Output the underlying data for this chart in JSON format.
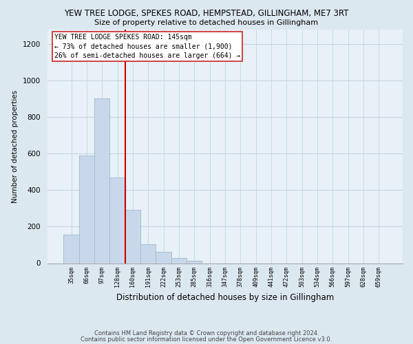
{
  "title": "YEW TREE LODGE, SPEKES ROAD, HEMPSTEAD, GILLINGHAM, ME7 3RT",
  "subtitle": "Size of property relative to detached houses in Gillingham",
  "xlabel": "Distribution of detached houses by size in Gillingham",
  "ylabel": "Number of detached properties",
  "bar_color": "#c8d8ea",
  "bar_edge_color": "#a0b8cc",
  "categories": [
    "35sqm",
    "66sqm",
    "97sqm",
    "128sqm",
    "160sqm",
    "191sqm",
    "222sqm",
    "253sqm",
    "285sqm",
    "316sqm",
    "347sqm",
    "378sqm",
    "409sqm",
    "441sqm",
    "472sqm",
    "503sqm",
    "534sqm",
    "566sqm",
    "597sqm",
    "628sqm",
    "659sqm"
  ],
  "values": [
    155,
    590,
    900,
    470,
    290,
    105,
    62,
    28,
    12,
    0,
    0,
    0,
    0,
    0,
    0,
    0,
    0,
    0,
    0,
    0,
    0
  ],
  "ylim": [
    0,
    1280
  ],
  "yticks": [
    0,
    200,
    400,
    600,
    800,
    1000,
    1200
  ],
  "vline_color": "#cc0000",
  "annotation_line1": "YEW TREE LODGE SPEKES ROAD: 145sqm",
  "annotation_line2": "← 73% of detached houses are smaller (1,900)",
  "annotation_line3": "26% of semi-detached houses are larger (664) →",
  "footer_line1": "Contains HM Land Registry data © Crown copyright and database right 2024.",
  "footer_line2": "Contains public sector information licensed under the Open Government Licence v3.0.",
  "bg_color": "#dce8f0",
  "plot_bg_color": "#e8f0f8",
  "grid_color": "#c8d4e0"
}
